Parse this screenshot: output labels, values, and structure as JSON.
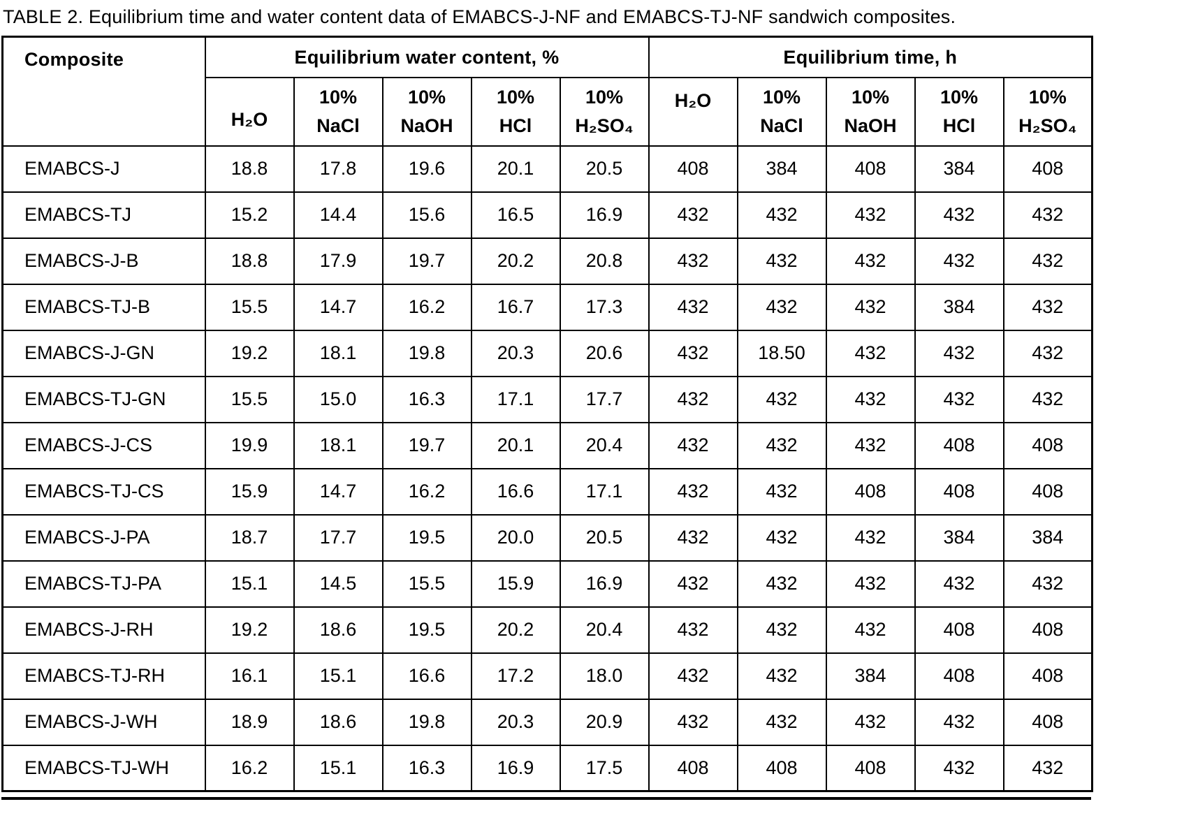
{
  "title": "TABLE 2. Equilibrium time and water content data of EMABCS-J-NF and EMABCS-TJ-NF sandwich composites.",
  "table": {
    "composite_header": "Composite",
    "group_headers": [
      "Equilibrium water content, %",
      "Equilibrium time, h"
    ],
    "water_subheaders": [
      "H₂O",
      "10%\nNaCl",
      "10%\nNaOH",
      "10%\nHCl",
      "10%\nH₂SO₄"
    ],
    "time_subheaders": [
      "H₂O",
      "10%\nNaCl",
      "10%\nNaOH",
      "10%\nHCl",
      "10%\nH₂SO₄"
    ],
    "rows": [
      {
        "composite": "EMABCS-J",
        "water": [
          "18.8",
          "17.8",
          "19.6",
          "20.1",
          "20.5"
        ],
        "time": [
          "408",
          "384",
          "408",
          "384",
          "408"
        ]
      },
      {
        "composite": "EMABCS-TJ",
        "water": [
          "15.2",
          "14.4",
          "15.6",
          "16.5",
          "16.9"
        ],
        "time": [
          "432",
          "432",
          "432",
          "432",
          "432"
        ]
      },
      {
        "composite": "EMABCS-J-B",
        "water": [
          "18.8",
          "17.9",
          "19.7",
          "20.2",
          "20.8"
        ],
        "time": [
          "432",
          "432",
          "432",
          "432",
          "432"
        ]
      },
      {
        "composite": "EMABCS-TJ-B",
        "water": [
          "15.5",
          "14.7",
          "16.2",
          "16.7",
          "17.3"
        ],
        "time": [
          "432",
          "432",
          "432",
          "384",
          "432"
        ]
      },
      {
        "composite": "EMABCS-J-GN",
        "water": [
          "19.2",
          "18.1",
          "19.8",
          "20.3",
          "20.6"
        ],
        "time": [
          "432",
          "18.50",
          "432",
          "432",
          "432"
        ]
      },
      {
        "composite": "EMABCS-TJ-GN",
        "water": [
          "15.5",
          "15.0",
          "16.3",
          "17.1",
          "17.7"
        ],
        "time": [
          "432",
          "432",
          "432",
          "432",
          "432"
        ]
      },
      {
        "composite": "EMABCS-J-CS",
        "water": [
          "19.9",
          "18.1",
          "19.7",
          "20.1",
          "20.4"
        ],
        "time": [
          "432",
          "432",
          "432",
          "408",
          "408"
        ]
      },
      {
        "composite": "EMABCS-TJ-CS",
        "water": [
          "15.9",
          "14.7",
          "16.2",
          "16.6",
          "17.1"
        ],
        "time": [
          "432",
          "432",
          "408",
          "408",
          "408"
        ]
      },
      {
        "composite": "EMABCS-J-PA",
        "water": [
          "18.7",
          "17.7",
          "19.5",
          "20.0",
          "20.5"
        ],
        "time": [
          "432",
          "432",
          "432",
          "384",
          "384"
        ]
      },
      {
        "composite": "EMABCS-TJ-PA",
        "water": [
          "15.1",
          "14.5",
          "15.5",
          "15.9",
          "16.9"
        ],
        "time": [
          "432",
          "432",
          "432",
          "432",
          "432"
        ]
      },
      {
        "composite": "EMABCS-J-RH",
        "water": [
          "19.2",
          "18.6",
          "19.5",
          "20.2",
          "20.4"
        ],
        "time": [
          "432",
          "432",
          "432",
          "408",
          "408"
        ]
      },
      {
        "composite": "EMABCS-TJ-RH",
        "water": [
          "16.1",
          "15.1",
          "16.6",
          "17.2",
          "18.0"
        ],
        "time": [
          "432",
          "432",
          "384",
          "408",
          "408"
        ]
      },
      {
        "composite": "EMABCS-J-WH",
        "water": [
          "18.9",
          "18.6",
          "19.8",
          "20.3",
          "20.9"
        ],
        "time": [
          "432",
          "432",
          "432",
          "432",
          "408"
        ]
      },
      {
        "composite": "EMABCS-TJ-WH",
        "water": [
          "16.2",
          "15.1",
          "16.3",
          "16.9",
          "17.5"
        ],
        "time": [
          "408",
          "408",
          "408",
          "432",
          "432"
        ]
      }
    ]
  }
}
